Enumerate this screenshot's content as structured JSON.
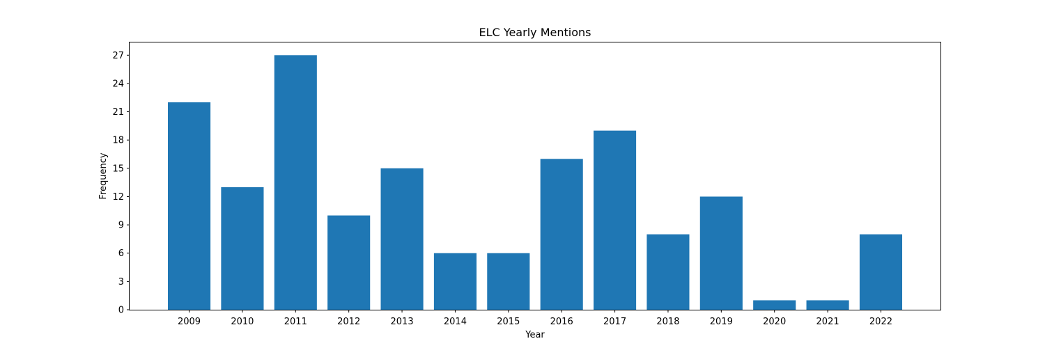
{
  "chart_data": {
    "type": "bar",
    "title": "ELC Yearly Mentions",
    "xlabel": "Year",
    "ylabel": "Frequency",
    "categories": [
      "2009",
      "2010",
      "2011",
      "2012",
      "2013",
      "2014",
      "2015",
      "2016",
      "2017",
      "2018",
      "2019",
      "2020",
      "2021",
      "2022"
    ],
    "values": [
      22,
      13,
      27,
      10,
      15,
      6,
      6,
      16,
      19,
      8,
      12,
      1,
      1,
      8
    ],
    "ylim": [
      0,
      28.35
    ],
    "yticks": [
      0,
      3,
      6,
      9,
      12,
      15,
      18,
      21,
      24,
      27
    ],
    "grid": false,
    "legend": "none",
    "bar_color": "#1f77b4"
  }
}
